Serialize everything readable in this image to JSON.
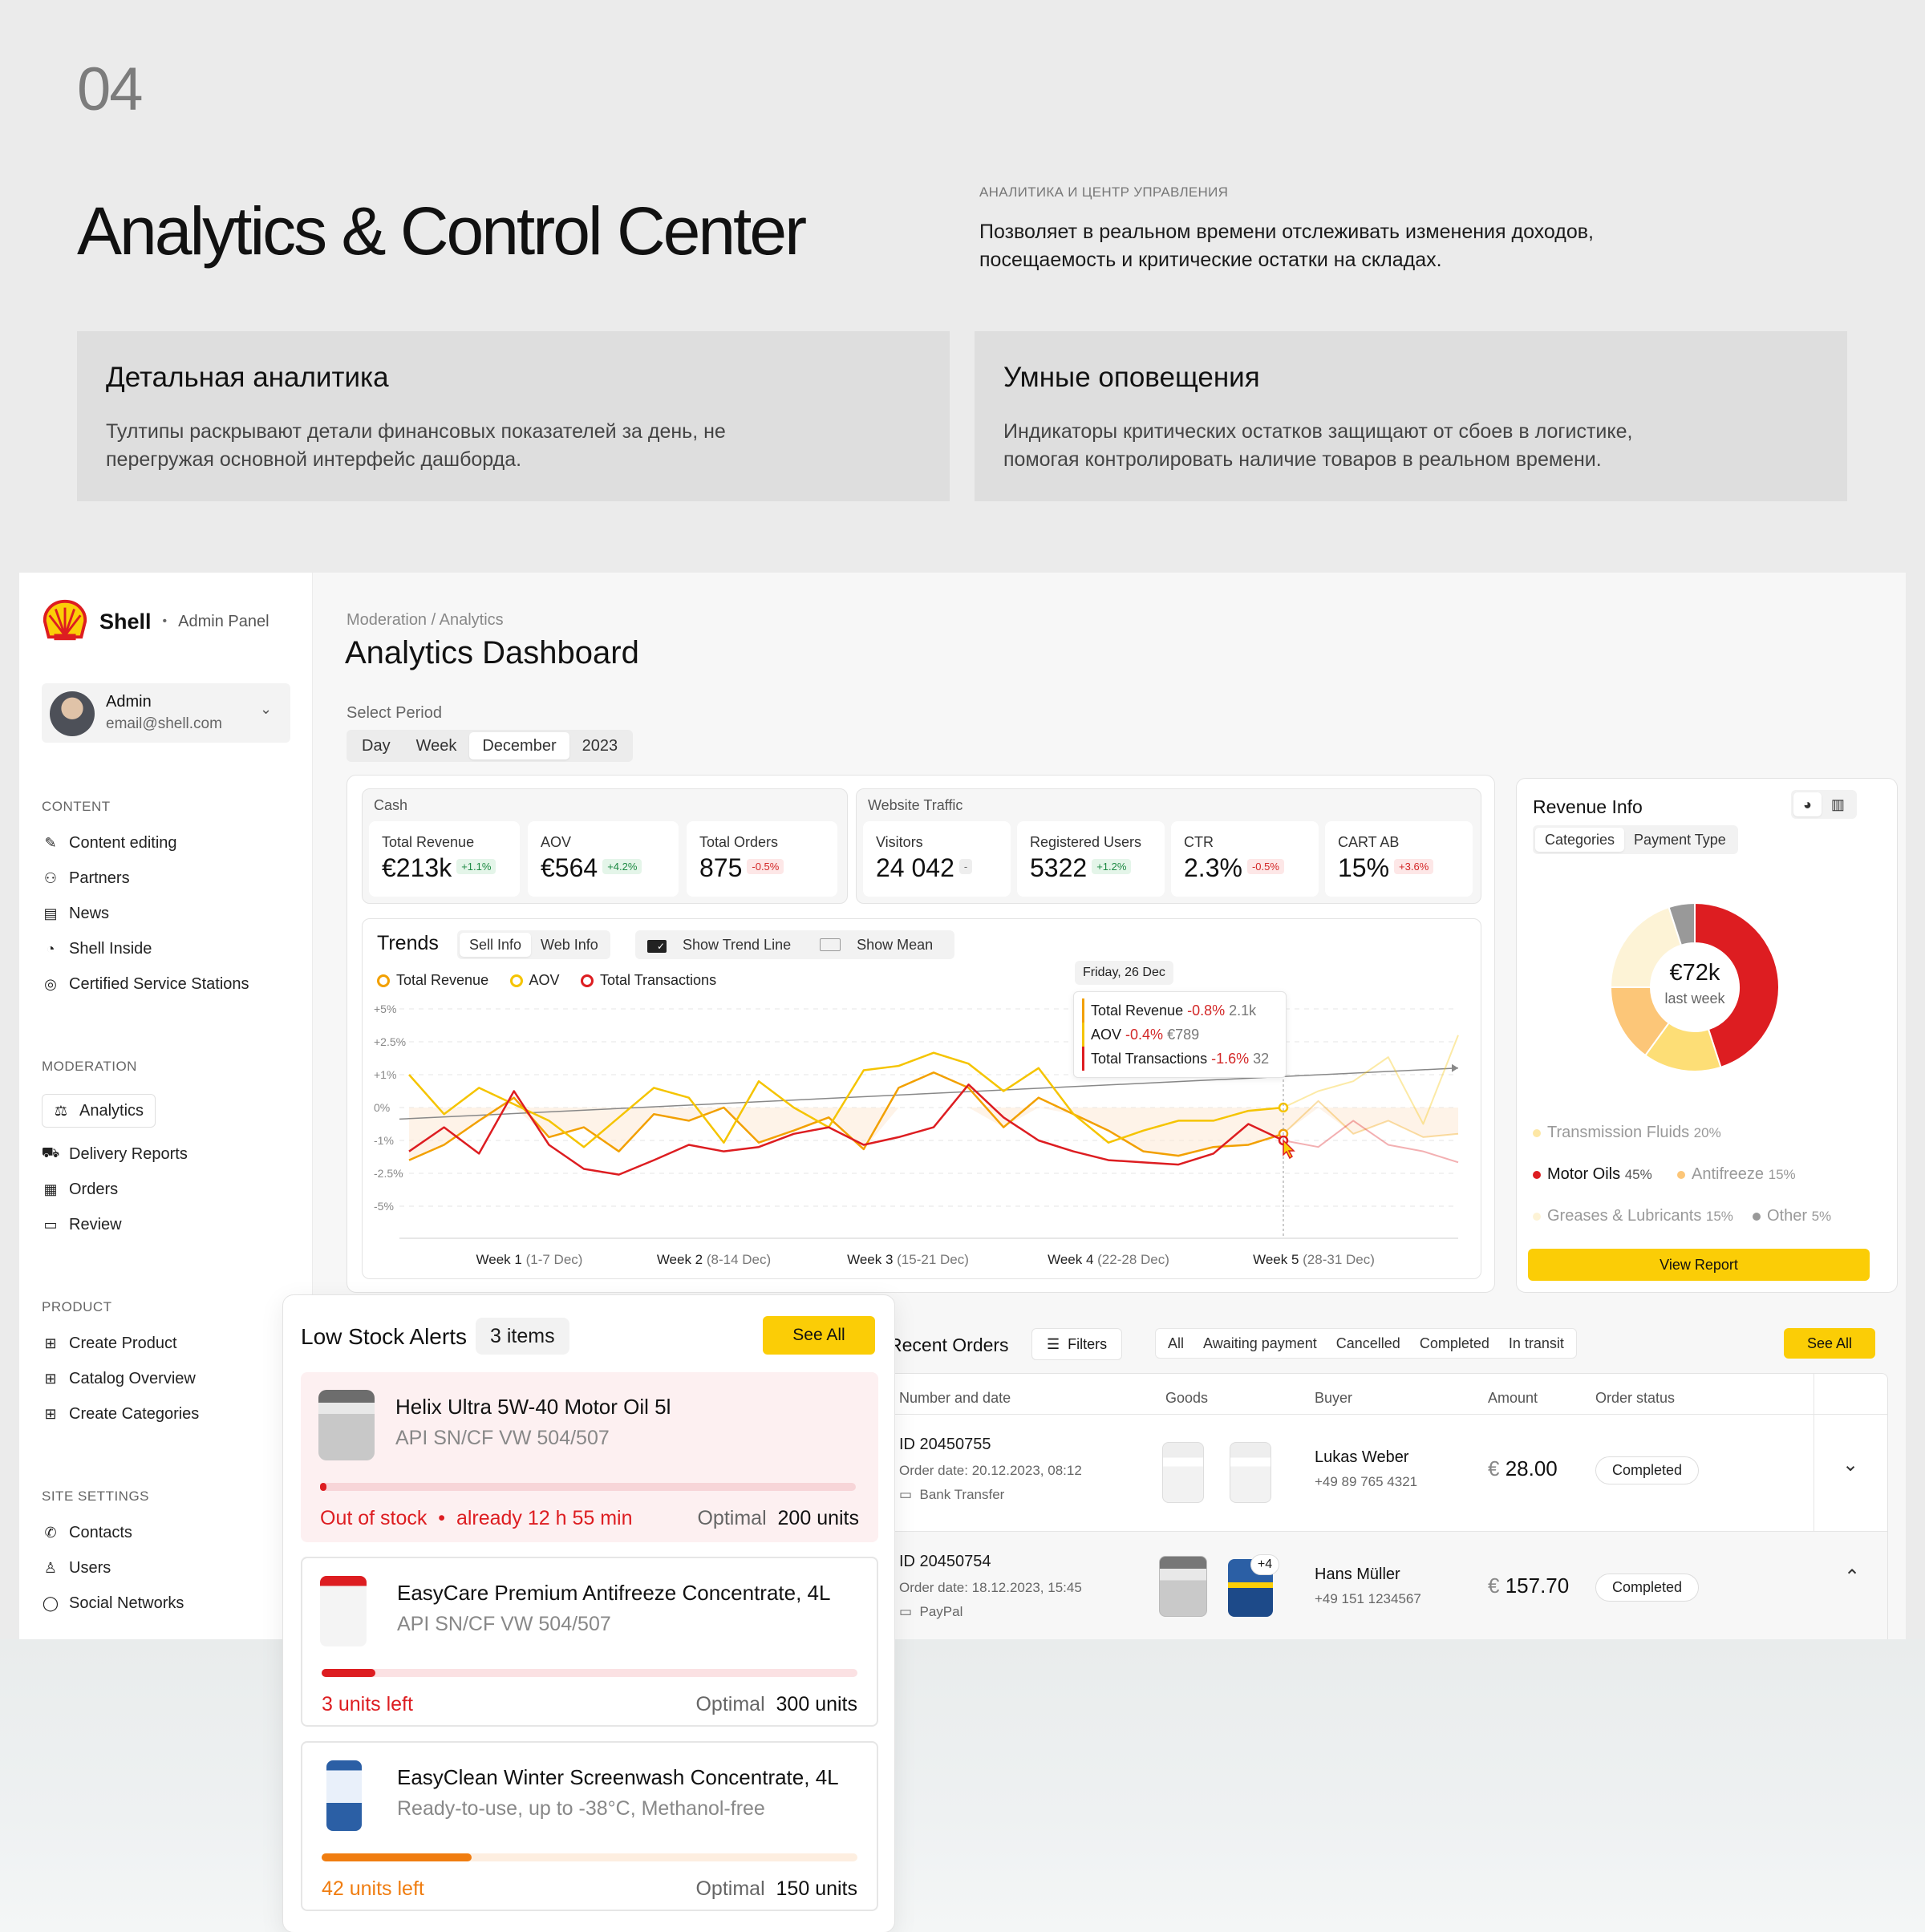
{
  "header": {
    "number": "04",
    "title": "Analytics & Control Center",
    "kicker": "АНАЛИТИКА И ЦЕНТР УПРАВЛЕНИЯ",
    "description": "Позволяет в реальном времени отслеживать изменения доходов, посещаемость и критические остатки на складах."
  },
  "features": [
    {
      "title": "Детальная аналитика",
      "text": "Тултипы раскрывают детали финансовых показателей за день, не перегружая основной интерфейс дашборда."
    },
    {
      "title": "Умные оповещения",
      "text": "Индикаторы критических остатков защищают от сбоев в логистике, помогая контролировать наличие товаров в реальном времени."
    }
  ],
  "sidebar": {
    "brand": "Shell",
    "brand_sub": "Admin Panel",
    "user_name": "Admin",
    "user_email": "email@shell.com",
    "sections": [
      {
        "label": "CONTENT",
        "items": [
          "Content editing",
          "Partners",
          "News",
          "Shell Inside",
          "Certified Service Stations"
        ]
      },
      {
        "label": "MODERATION",
        "items": [
          "Analytics",
          "Delivery Reports",
          "Orders",
          "Review"
        ]
      },
      {
        "label": "PRODUCT",
        "items": [
          "Create Product",
          "Catalog Overview",
          "Create Categories"
        ]
      },
      {
        "label": "SITE SETTINGS",
        "items": [
          "Contacts",
          "Users",
          "Social Networks"
        ]
      }
    ]
  },
  "page": {
    "breadcrumb": "Moderation / Analytics",
    "title": "Analytics Dashboard",
    "period_label": "Select Period",
    "period_tabs": [
      "Day",
      "Week",
      "December",
      "2023"
    ],
    "period_selected": "December"
  },
  "cash": {
    "label": "Cash",
    "kpis": [
      {
        "title": "Total Revenue",
        "value": "€213k",
        "delta": "+1.1%",
        "tone": "g"
      },
      {
        "title": "AOV",
        "value": "€564",
        "delta": "+4.2%",
        "tone": "g"
      },
      {
        "title": "Total Orders",
        "value": "875",
        "delta": "-0.5%",
        "tone": "r"
      }
    ]
  },
  "traffic": {
    "label": "Website Traffic",
    "kpis": [
      {
        "title": "Visitors",
        "value": "24 042",
        "delta": "-",
        "tone": "n"
      },
      {
        "title": "Registered Users",
        "value": "5322",
        "delta": "+1.2%",
        "tone": "g"
      },
      {
        "title": "CTR",
        "value": "2.3%",
        "delta": "-0.5%",
        "tone": "r"
      },
      {
        "title": "CART AB",
        "value": "15%",
        "delta": "+3.6%",
        "tone": "r"
      }
    ]
  },
  "trends": {
    "title": "Trends",
    "tabs": [
      "Sell Info",
      "Web Info"
    ],
    "show_trend": "Show Trend Line",
    "show_mean": "Show Mean",
    "legend": [
      "Total Revenue",
      "AOV",
      "Total Transactions"
    ],
    "y_ticks": [
      "+5%",
      "+2.5%",
      "+1%",
      "0%",
      "-1%",
      "-2.5%",
      "-5%"
    ],
    "weeks": [
      {
        "bold": "Week 1",
        "range": "(1-7 Dec)"
      },
      {
        "bold": "Week 2",
        "range": "(8-14 Dec)"
      },
      {
        "bold": "Week 3",
        "range": "(15-21 Dec)"
      },
      {
        "bold": "Week 4",
        "range": "(22-28 Dec)"
      },
      {
        "bold": "Week 5",
        "range": "(28-31 Dec)"
      }
    ],
    "tooltip": {
      "date": "Friday, 26 Dec",
      "rows": [
        {
          "name": "Total Revenue",
          "delta": "-0.8%",
          "value": "2.1k",
          "color": "#f2a000"
        },
        {
          "name": "AOV",
          "delta": "-0.4%",
          "value": "€789",
          "color": "#f5c400"
        },
        {
          "name": "Total Transactions",
          "delta": "-1.6%",
          "value": "32",
          "color": "#dd1d21"
        }
      ]
    }
  },
  "chart_data": {
    "type": "line",
    "x": [
      1,
      2,
      3,
      4,
      5,
      6,
      7,
      8,
      9,
      10,
      11,
      12,
      13,
      14,
      15,
      16,
      17,
      18,
      19,
      20,
      21,
      22,
      23,
      24,
      25,
      26,
      27,
      28,
      29,
      30,
      31
    ],
    "ylim": [
      -5,
      5
    ],
    "series": [
      {
        "name": "Total Revenue",
        "color": "#f2a000",
        "values": [
          -1.9,
          -1.2,
          -0.4,
          0.3,
          -0.9,
          -0.6,
          -1.5,
          -0.2,
          -0.4,
          0.0,
          -1.1,
          -0.7,
          -0.3,
          -1.4,
          0.6,
          1.1,
          0.6,
          -0.6,
          0.3,
          -0.2,
          -0.7,
          -1.5,
          -1.7,
          -1.3,
          -1.2,
          -0.8,
          0.2,
          -0.8,
          -0.4,
          -0.9,
          -0.8
        ]
      },
      {
        "name": "AOV",
        "color": "#f5c400",
        "values": [
          1.0,
          -0.2,
          0.6,
          0.1,
          -0.4,
          -1.3,
          -0.3,
          0.6,
          0.3,
          -1.1,
          0.8,
          0.0,
          -0.6,
          1.2,
          1.4,
          2.0,
          1.5,
          0.5,
          1.3,
          -0.2,
          -1.1,
          -0.7,
          -0.4,
          -0.4,
          -0.1,
          0.0,
          0.5,
          0.8,
          1.8,
          -0.5,
          3.0
        ]
      },
      {
        "name": "Total Transactions",
        "color": "#dd1d21",
        "values": [
          -1.5,
          -0.6,
          -1.6,
          0.5,
          -1.2,
          -2.3,
          -2.6,
          -1.9,
          -1.2,
          -1.5,
          -1.3,
          -0.8,
          -0.6,
          -1.2,
          -0.9,
          -0.6,
          0.7,
          -0.3,
          -1.0,
          -1.5,
          -1.9,
          -2.0,
          -2.1,
          -1.6,
          -0.5,
          -1.0,
          -1.3,
          -0.4,
          -1.2,
          -1.5,
          -2.0
        ]
      }
    ],
    "hover_day": 26
  },
  "revenue_info": {
    "title": "Revenue Info",
    "tabs": [
      "Categories",
      "Payment Type"
    ],
    "center_value": "€72k",
    "center_label": "last week",
    "segments": [
      {
        "name": "Motor Oils",
        "pct": "45%",
        "value": 45,
        "color": "#dd1d21"
      },
      {
        "name": "Antifreeze",
        "pct": "15%",
        "value": 15,
        "color": "#fdde76"
      },
      {
        "name": "Greases & Lubricants",
        "pct": "15%",
        "value": 15,
        "color": "#fcc678"
      },
      {
        "name": "Transmission Fluids",
        "pct": "20%",
        "value": 20,
        "color": "#fdf3d6"
      },
      {
        "name": "Other",
        "pct": "5%",
        "value": 5,
        "color": "#999999"
      }
    ],
    "button": "View Report"
  },
  "orders": {
    "title": "Recent Orders",
    "filters": "Filters",
    "tabs": [
      "All",
      "Awaiting payment",
      "Cancelled",
      "Completed",
      "In transit"
    ],
    "see_all": "See All",
    "columns": [
      "Number and date",
      "Goods",
      "Buyer",
      "Amount",
      "Order status"
    ],
    "rows": [
      {
        "id": "ID 20450755",
        "date": "Order date: 20.12.2023, 08:12",
        "payment": "Bank Transfer",
        "buyer": "Lukas Weber",
        "phone": "+49 89 765 4321",
        "currency": "€",
        "amount": "28.00",
        "status": "Completed",
        "more": ""
      },
      {
        "id": "ID 20450754",
        "date": "Order date: 18.12.2023, 15:45",
        "payment": "PayPal",
        "buyer": "Hans Müller",
        "phone": "+49 151 1234567",
        "currency": "€",
        "amount": "157.70",
        "status": "Completed",
        "more": "+4"
      }
    ]
  },
  "stock": {
    "title": "Low Stock Alerts",
    "count": "3 items",
    "see_all": "See All",
    "items": [
      {
        "name": "Helix Ultra 5W-40 Motor Oil 5l",
        "sub": "API SN/CF VW 504/507",
        "status_a": "Out of stock",
        "status_b": "already 12 h 55 min",
        "optimal_label": "Optimal",
        "optimal": "200 units",
        "level": 0.0
      },
      {
        "name": "EasyCare Premium Antifreeze Concentrate, 4L",
        "sub": "API SN/CF VW 504/507",
        "status_a": "3 units left",
        "optimal_label": "Optimal",
        "optimal": "300 units",
        "level": 0.1
      },
      {
        "name": "EasyClean Winter Screenwash  Concentrate, 4L",
        "sub": "Ready-to-use, up to -38°C, Methanol-free",
        "status_a": "42 units left",
        "optimal_label": "Optimal",
        "optimal": "150 units",
        "level": 0.28
      }
    ]
  }
}
